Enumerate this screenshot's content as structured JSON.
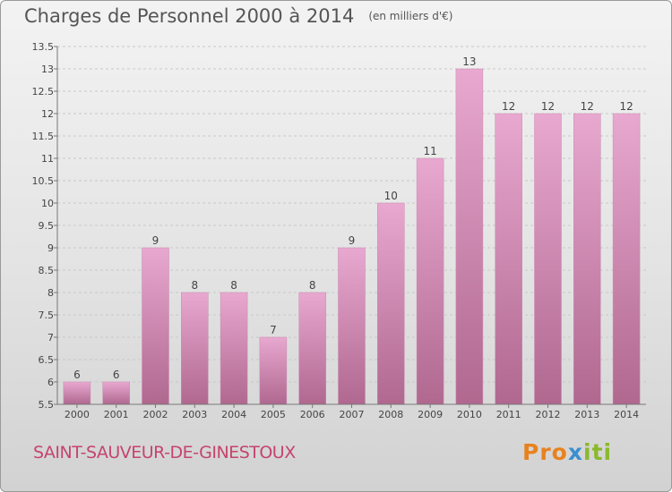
{
  "header": {
    "title": "Charges de Personnel 2000 à 2014",
    "unit": "(en milliers d'€)"
  },
  "footer": {
    "commune": "SAINT-SAUVEUR-DE-GINESTOUX",
    "logo_letters": [
      "P",
      "r",
      "o",
      "x",
      "i",
      "t",
      "i"
    ],
    "logo_colors": [
      "#e8821e",
      "#e8821e",
      "#e8821e",
      "#3a8fd0",
      "#8ab92d",
      "#8ab92d",
      "#8ab92d"
    ]
  },
  "colors": {
    "bar_top": "#e8a8d0",
    "bar_bottom": "#b0688f",
    "grid": "#c8c8c8",
    "axis": "#777777"
  },
  "chart_data": {
    "type": "bar",
    "title": "Charges de Personnel 2000 à 2014",
    "categories": [
      "2000",
      "2001",
      "2002",
      "2003",
      "2004",
      "2005",
      "2006",
      "2007",
      "2008",
      "2009",
      "2010",
      "2011",
      "2012",
      "2013",
      "2014"
    ],
    "values": [
      6,
      6,
      9,
      8,
      8,
      7,
      8,
      9,
      10,
      11,
      13,
      12,
      12,
      12,
      12
    ],
    "value_labels": [
      "6",
      "6",
      "9",
      "8",
      "8",
      "7",
      "8",
      "9",
      "10",
      "11",
      "13",
      "12",
      "12",
      "12",
      "12"
    ],
    "ylim": [
      5.5,
      13.5
    ],
    "yticks": [
      5.5,
      6,
      6.5,
      7,
      7.5,
      8,
      8.5,
      9,
      9.5,
      10,
      10.5,
      11,
      11.5,
      12,
      12.5,
      13,
      13.5
    ],
    "grid": true
  }
}
